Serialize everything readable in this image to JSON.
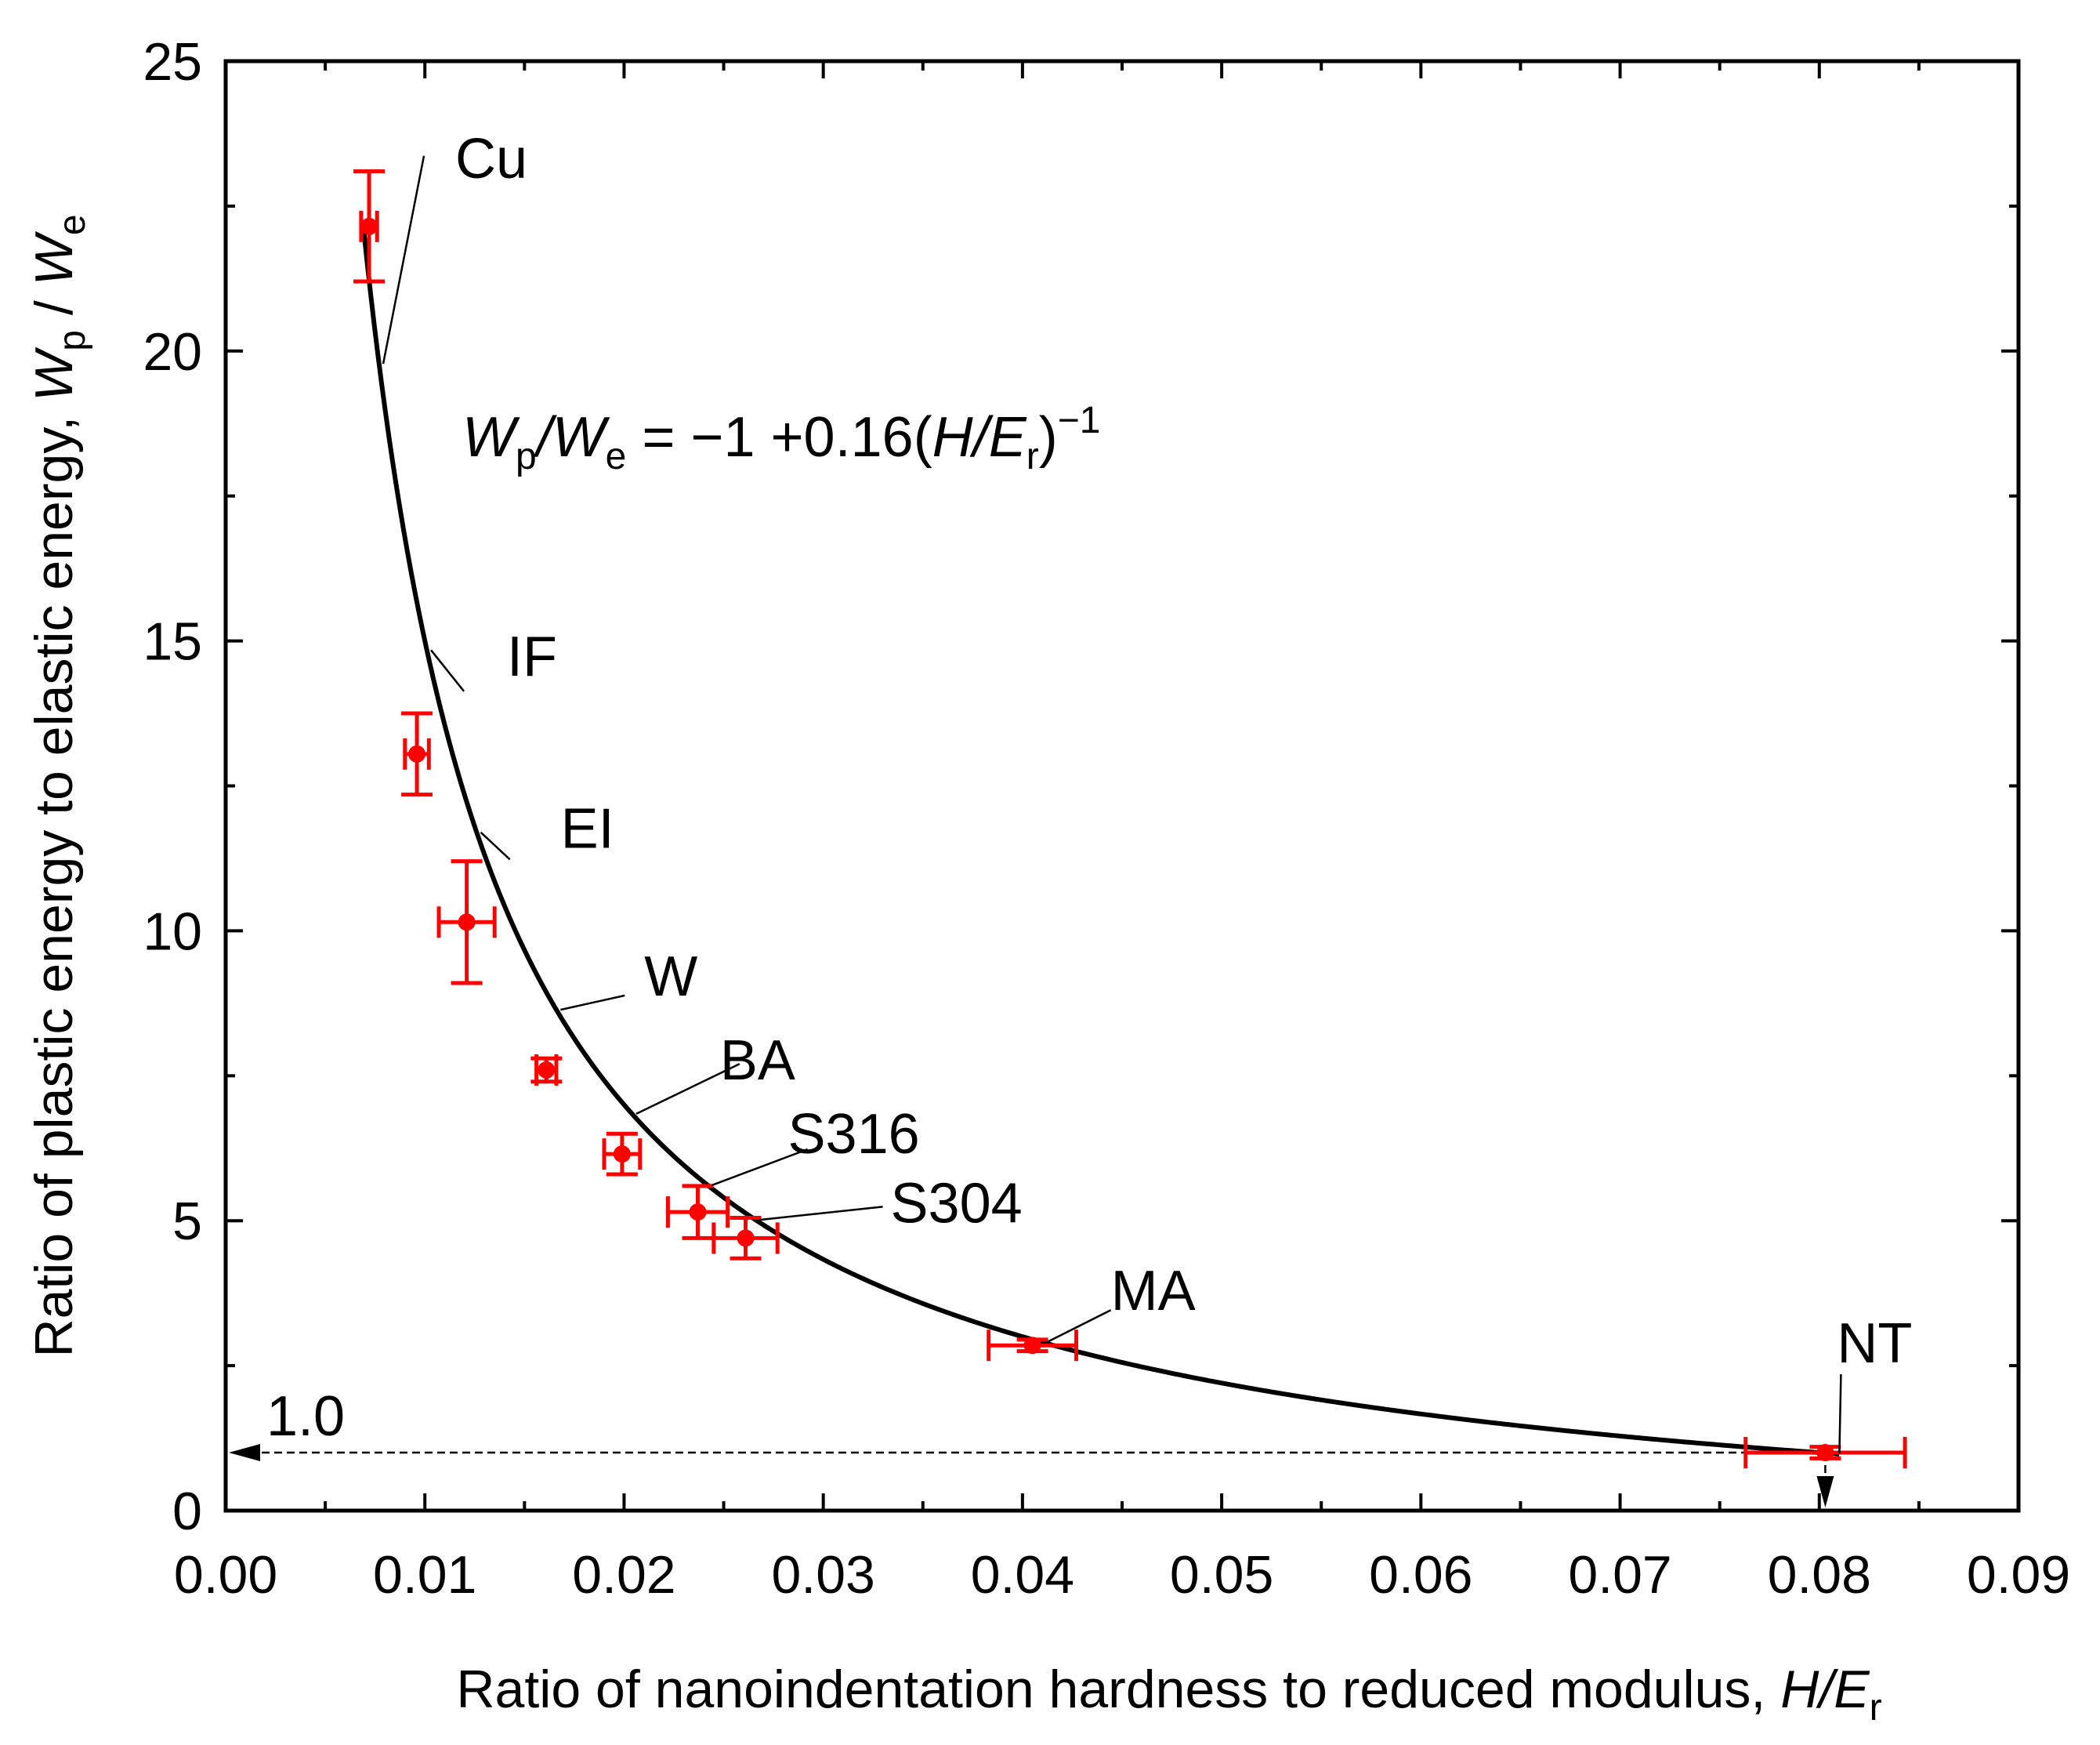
{
  "chart_data": {
    "type": "scatter",
    "title": "",
    "xlabel": "Ratio of nanoindentation hardness to reduced modulus, ",
    "xlabel_var": "H",
    "xlabel_slash": "/",
    "xlabel_var2": "E",
    "xlabel_sub": "r",
    "ylabel": "Ratio of plastic energy to elastic energy, ",
    "ylabel_var": "W",
    "ylabel_sub": "p",
    "ylabel_slash": " / ",
    "ylabel_var2": "W",
    "ylabel_sub2": "e",
    "xlim": [
      0.0,
      0.09
    ],
    "ylim": [
      0,
      25
    ],
    "xticks": [
      "0.00",
      "0.01",
      "0.02",
      "0.03",
      "0.04",
      "0.05",
      "0.06",
      "0.07",
      "0.08",
      "0.09"
    ],
    "yticks": [
      "0",
      "5",
      "10",
      "15",
      "20",
      "25"
    ],
    "fit": {
      "equation_prefix": "W",
      "equation_sub1": "p",
      "equation_slash": "/",
      "equation_var2": "W",
      "equation_sub2": "e",
      "equation_mid": " = −1 +0.16(",
      "equation_var3": "H",
      "equation_slash2": "/",
      "equation_var4": "E",
      "equation_sub3": "r",
      "equation_close": ")",
      "equation_sup": "−1",
      "a": -1,
      "b": 0.16,
      "x_range": [
        0.0069,
        0.081
      ],
      "color": "#000000"
    },
    "reference_line": {
      "y": 1.0,
      "label": "1.0"
    },
    "series": [
      {
        "name": "samples",
        "color": "#ff0000",
        "points": [
          {
            "label": "Cu",
            "x": 0.0072,
            "y": 22.15,
            "xerr": 0.0004,
            "yerr": 0.95
          },
          {
            "label": "IF",
            "x": 0.0096,
            "y": 13.05,
            "xerr": 0.0006,
            "yerr": 0.7
          },
          {
            "label": "EI",
            "x": 0.0121,
            "y": 10.15,
            "xerr": 0.0014,
            "yerr": 1.05
          },
          {
            "label": "W",
            "x": 0.0161,
            "y": 7.6,
            "xerr": 0.0005,
            "yerr": 0.2
          },
          {
            "label": "BA",
            "x": 0.0199,
            "y": 6.15,
            "xerr": 0.0009,
            "yerr": 0.35
          },
          {
            "label": "S316",
            "x": 0.0237,
            "y": 5.15,
            "xerr": 0.0015,
            "yerr": 0.45
          },
          {
            "label": "S304",
            "x": 0.0261,
            "y": 4.7,
            "xerr": 0.0016,
            "yerr": 0.35
          },
          {
            "label": "MA",
            "x": 0.0405,
            "y": 2.85,
            "xerr": 0.0022,
            "yerr": 0.1
          },
          {
            "label": "NT",
            "x": 0.0803,
            "y": 1.0,
            "xerr": 0.004,
            "yerr": 0.1
          }
        ]
      }
    ]
  }
}
